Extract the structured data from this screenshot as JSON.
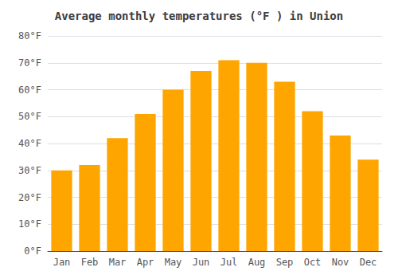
{
  "chart_data": {
    "type": "bar",
    "title": "Average monthly temperatures (°F ) in Union",
    "categories": [
      "Jan",
      "Feb",
      "Mar",
      "Apr",
      "May",
      "Jun",
      "Jul",
      "Aug",
      "Sep",
      "Oct",
      "Nov",
      "Dec"
    ],
    "values": [
      30,
      32,
      42,
      51,
      60,
      67,
      71,
      70,
      63,
      52,
      43,
      34
    ],
    "color": "#FFA500",
    "ylim": [
      0,
      80
    ],
    "yticks": [
      {
        "value": 0,
        "label": "0°F"
      },
      {
        "value": 10,
        "label": "10°F"
      },
      {
        "value": 20,
        "label": "20°F"
      },
      {
        "value": 30,
        "label": "30°F"
      },
      {
        "value": 40,
        "label": "40°F"
      },
      {
        "value": 50,
        "label": "50°F"
      },
      {
        "value": 60,
        "label": "60°F"
      },
      {
        "value": 70,
        "label": "70°F"
      },
      {
        "value": 80,
        "label": "80°F"
      }
    ],
    "grid": true
  }
}
